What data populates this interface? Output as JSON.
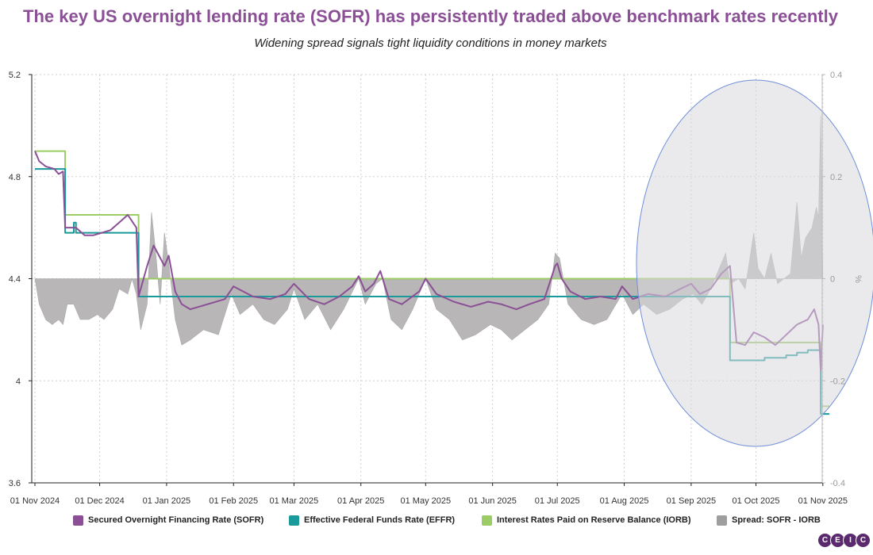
{
  "colors": {
    "title": "#8b4f96",
    "sofr": "#8b4f96",
    "effr": "#1a9a9a",
    "iorb": "#9ccc65",
    "spread": "#b8b6b6",
    "highlight_fill": "#d9d8df",
    "highlight_stroke": "#6f8fd8"
  },
  "logo_letters": [
    "C",
    "E",
    "I",
    "C"
  ],
  "chart_data": {
    "type": "line",
    "title": "The key US overnight lending rate (SOFR) has persistently traded above benchmark rates recently",
    "subtitle": "Widening spread signals tight liquidity conditions in money markets",
    "x_ticks": [
      "01 Nov 2024",
      "01 Dec 2024",
      "01 Jan 2025",
      "01 Feb 2025",
      "01 Mar 2025",
      "01 Apr 2025",
      "01 May 2025",
      "01 Jun 2025",
      "01 Jul 2025",
      "01 Aug 2025",
      "01 Sep 2025",
      "01 Oct 2025",
      "01 Nov 2025"
    ],
    "ylim_left": [
      3.6,
      5.2
    ],
    "yticks_left": [
      "5.2",
      "4.8",
      "4.4",
      "4",
      "3.6"
    ],
    "ylim_right": [
      -0.4,
      0.4
    ],
    "yticks_right": [
      "0.4",
      "0.2",
      "0",
      "-0.2",
      "-0.4"
    ],
    "ylabel_right": "%",
    "grid": true,
    "legend_position": "bottom",
    "annotation": "highlight ellipse over Sep 2025 – Nov 2025",
    "series": [
      {
        "name": "Secured Overnight Financing Rate (SOFR)",
        "axis": "left",
        "style": "line",
        "points": [
          [
            "2024-11-01",
            4.9
          ],
          [
            "2024-11-03",
            4.86
          ],
          [
            "2024-11-06",
            4.84
          ],
          [
            "2024-11-10",
            4.83
          ],
          [
            "2024-11-12",
            4.81
          ],
          [
            "2024-11-14",
            4.82
          ],
          [
            "2024-11-15",
            4.6
          ],
          [
            "2024-11-20",
            4.6
          ],
          [
            "2024-11-24",
            4.57
          ],
          [
            "2024-11-28",
            4.57
          ],
          [
            "2024-12-02",
            4.58
          ],
          [
            "2024-12-06",
            4.59
          ],
          [
            "2024-12-10",
            4.62
          ],
          [
            "2024-12-14",
            4.65
          ],
          [
            "2024-12-18",
            4.6
          ],
          [
            "2024-12-19",
            4.33
          ],
          [
            "2024-12-23",
            4.45
          ],
          [
            "2024-12-26",
            4.53
          ],
          [
            "2024-12-31",
            4.45
          ],
          [
            "2025-01-02",
            4.49
          ],
          [
            "2025-01-05",
            4.35
          ],
          [
            "2025-01-08",
            4.3
          ],
          [
            "2025-01-12",
            4.28
          ],
          [
            "2025-01-20",
            4.3
          ],
          [
            "2025-01-28",
            4.32
          ],
          [
            "2025-02-01",
            4.37
          ],
          [
            "2025-02-10",
            4.33
          ],
          [
            "2025-02-18",
            4.32
          ],
          [
            "2025-02-25",
            4.34
          ],
          [
            "2025-03-01",
            4.38
          ],
          [
            "2025-03-08",
            4.32
          ],
          [
            "2025-03-15",
            4.3
          ],
          [
            "2025-03-22",
            4.33
          ],
          [
            "2025-03-28",
            4.37
          ],
          [
            "2025-03-31",
            4.41
          ],
          [
            "2025-04-03",
            4.35
          ],
          [
            "2025-04-07",
            4.38
          ],
          [
            "2025-04-10",
            4.43
          ],
          [
            "2025-04-14",
            4.32
          ],
          [
            "2025-04-20",
            4.3
          ],
          [
            "2025-04-28",
            4.35
          ],
          [
            "2025-05-01",
            4.4
          ],
          [
            "2025-05-06",
            4.34
          ],
          [
            "2025-05-14",
            4.31
          ],
          [
            "2025-05-22",
            4.29
          ],
          [
            "2025-05-30",
            4.31
          ],
          [
            "2025-06-05",
            4.3
          ],
          [
            "2025-06-12",
            4.28
          ],
          [
            "2025-06-18",
            4.3
          ],
          [
            "2025-06-25",
            4.32
          ],
          [
            "2025-06-30",
            4.45
          ],
          [
            "2025-07-01",
            4.46
          ],
          [
            "2025-07-03",
            4.4
          ],
          [
            "2025-07-07",
            4.35
          ],
          [
            "2025-07-14",
            4.32
          ],
          [
            "2025-07-21",
            4.33
          ],
          [
            "2025-07-28",
            4.32
          ],
          [
            "2025-07-31",
            4.37
          ],
          [
            "2025-08-05",
            4.32
          ],
          [
            "2025-08-12",
            4.34
          ],
          [
            "2025-08-20",
            4.33
          ],
          [
            "2025-08-27",
            4.36
          ],
          [
            "2025-09-01",
            4.38
          ],
          [
            "2025-09-05",
            4.34
          ],
          [
            "2025-09-10",
            4.36
          ],
          [
            "2025-09-15",
            4.42
          ],
          [
            "2025-09-19",
            4.45
          ],
          [
            "2025-09-22",
            4.15
          ],
          [
            "2025-09-26",
            4.14
          ],
          [
            "2025-09-30",
            4.19
          ],
          [
            "2025-10-05",
            4.17
          ],
          [
            "2025-10-10",
            4.14
          ],
          [
            "2025-10-15",
            4.18
          ],
          [
            "2025-10-20",
            4.22
          ],
          [
            "2025-10-25",
            4.24
          ],
          [
            "2025-10-28",
            4.28
          ],
          [
            "2025-10-30",
            4.22
          ],
          [
            "2025-10-31",
            4.04
          ],
          [
            "2025-11-01",
            4.22
          ]
        ]
      },
      {
        "name": "Effective Federal Funds Rate (EFFR)",
        "axis": "left",
        "style": "step",
        "points": [
          [
            "2024-11-01",
            4.83
          ],
          [
            "2024-11-15",
            4.58
          ],
          [
            "2024-11-19",
            4.62
          ],
          [
            "2024-11-20",
            4.58
          ],
          [
            "2024-12-19",
            4.33
          ],
          [
            "2025-09-18",
            4.33
          ],
          [
            "2025-09-19",
            4.08
          ],
          [
            "2025-10-05",
            4.09
          ],
          [
            "2025-10-15",
            4.1
          ],
          [
            "2025-10-20",
            4.11
          ],
          [
            "2025-10-25",
            4.12
          ],
          [
            "2025-10-30",
            4.12
          ],
          [
            "2025-10-31",
            3.87
          ],
          [
            "2025-11-04",
            3.87
          ]
        ]
      },
      {
        "name": "Interest Rates Paid on Reserve Balance (IORB)",
        "axis": "left",
        "style": "step",
        "points": [
          [
            "2024-11-01",
            4.9
          ],
          [
            "2024-11-15",
            4.65
          ],
          [
            "2024-12-19",
            4.4
          ],
          [
            "2025-09-18",
            4.4
          ],
          [
            "2025-09-19",
            4.15
          ],
          [
            "2025-10-31",
            3.9
          ],
          [
            "2025-11-04",
            3.9
          ]
        ]
      },
      {
        "name": "Spread: SOFR - IORB",
        "axis": "right",
        "style": "area",
        "points": [
          [
            "2024-11-01",
            0.0
          ],
          [
            "2024-11-03",
            -0.05
          ],
          [
            "2024-11-06",
            -0.08
          ],
          [
            "2024-11-09",
            -0.09
          ],
          [
            "2024-11-12",
            -0.08
          ],
          [
            "2024-11-14",
            -0.09
          ],
          [
            "2024-11-16",
            -0.05
          ],
          [
            "2024-11-19",
            -0.05
          ],
          [
            "2024-11-22",
            -0.08
          ],
          [
            "2024-11-26",
            -0.08
          ],
          [
            "2024-11-30",
            -0.07
          ],
          [
            "2024-12-03",
            -0.08
          ],
          [
            "2024-12-07",
            -0.06
          ],
          [
            "2024-12-10",
            -0.02
          ],
          [
            "2024-12-14",
            -0.03
          ],
          [
            "2024-12-16",
            0.0
          ],
          [
            "2024-12-18",
            -0.03
          ],
          [
            "2024-12-20",
            -0.1
          ],
          [
            "2024-12-23",
            -0.05
          ],
          [
            "2024-12-25",
            0.13
          ],
          [
            "2024-12-27",
            0.05
          ],
          [
            "2024-12-29",
            -0.05
          ],
          [
            "2024-12-31",
            0.09
          ],
          [
            "2025-01-02",
            0.03
          ],
          [
            "2025-01-05",
            -0.08
          ],
          [
            "2025-01-08",
            -0.13
          ],
          [
            "2025-01-12",
            -0.12
          ],
          [
            "2025-01-18",
            -0.1
          ],
          [
            "2025-01-25",
            -0.11
          ],
          [
            "2025-01-31",
            -0.03
          ],
          [
            "2025-02-04",
            -0.07
          ],
          [
            "2025-02-10",
            -0.05
          ],
          [
            "2025-02-15",
            -0.08
          ],
          [
            "2025-02-20",
            -0.09
          ],
          [
            "2025-02-26",
            -0.06
          ],
          [
            "2025-03-01",
            -0.02
          ],
          [
            "2025-03-06",
            -0.08
          ],
          [
            "2025-03-12",
            -0.05
          ],
          [
            "2025-03-18",
            -0.1
          ],
          [
            "2025-03-24",
            -0.06
          ],
          [
            "2025-03-31",
            0.0
          ],
          [
            "2025-04-03",
            -0.05
          ],
          [
            "2025-04-08",
            -0.01
          ],
          [
            "2025-04-11",
            0.0
          ],
          [
            "2025-04-15",
            -0.08
          ],
          [
            "2025-04-20",
            -0.1
          ],
          [
            "2025-04-25",
            -0.06
          ],
          [
            "2025-05-01",
            0.0
          ],
          [
            "2025-05-06",
            -0.06
          ],
          [
            "2025-05-12",
            -0.08
          ],
          [
            "2025-05-18",
            -0.12
          ],
          [
            "2025-05-24",
            -0.11
          ],
          [
            "2025-05-31",
            -0.09
          ],
          [
            "2025-06-05",
            -0.1
          ],
          [
            "2025-06-10",
            -0.12
          ],
          [
            "2025-06-16",
            -0.1
          ],
          [
            "2025-06-22",
            -0.08
          ],
          [
            "2025-06-27",
            -0.05
          ],
          [
            "2025-06-30",
            0.05
          ],
          [
            "2025-07-02",
            0.04
          ],
          [
            "2025-07-06",
            -0.05
          ],
          [
            "2025-07-12",
            -0.08
          ],
          [
            "2025-07-18",
            -0.09
          ],
          [
            "2025-07-24",
            -0.08
          ],
          [
            "2025-07-31",
            -0.03
          ],
          [
            "2025-08-05",
            -0.07
          ],
          [
            "2025-08-10",
            -0.05
          ],
          [
            "2025-08-16",
            -0.07
          ],
          [
            "2025-08-22",
            -0.06
          ],
          [
            "2025-08-28",
            -0.04
          ],
          [
            "2025-09-02",
            -0.03
          ],
          [
            "2025-09-06",
            -0.05
          ],
          [
            "2025-09-10",
            -0.02
          ],
          [
            "2025-09-14",
            0.02
          ],
          [
            "2025-09-17",
            0.05
          ],
          [
            "2025-09-19",
            -0.01
          ],
          [
            "2025-09-23",
            0.0
          ],
          [
            "2025-09-26",
            -0.02
          ],
          [
            "2025-09-30",
            0.09
          ],
          [
            "2025-10-02",
            0.02
          ],
          [
            "2025-10-05",
            0.0
          ],
          [
            "2025-10-08",
            0.05
          ],
          [
            "2025-10-11",
            -0.01
          ],
          [
            "2025-10-14",
            0.0
          ],
          [
            "2025-10-17",
            0.01
          ],
          [
            "2025-10-20",
            0.15
          ],
          [
            "2025-10-22",
            0.04
          ],
          [
            "2025-10-24",
            0.08
          ],
          [
            "2025-10-27",
            0.1
          ],
          [
            "2025-10-29",
            0.14
          ],
          [
            "2025-10-30",
            0.12
          ],
          [
            "2025-10-31",
            0.32
          ],
          [
            "2025-11-01",
            0.0
          ]
        ]
      }
    ]
  }
}
